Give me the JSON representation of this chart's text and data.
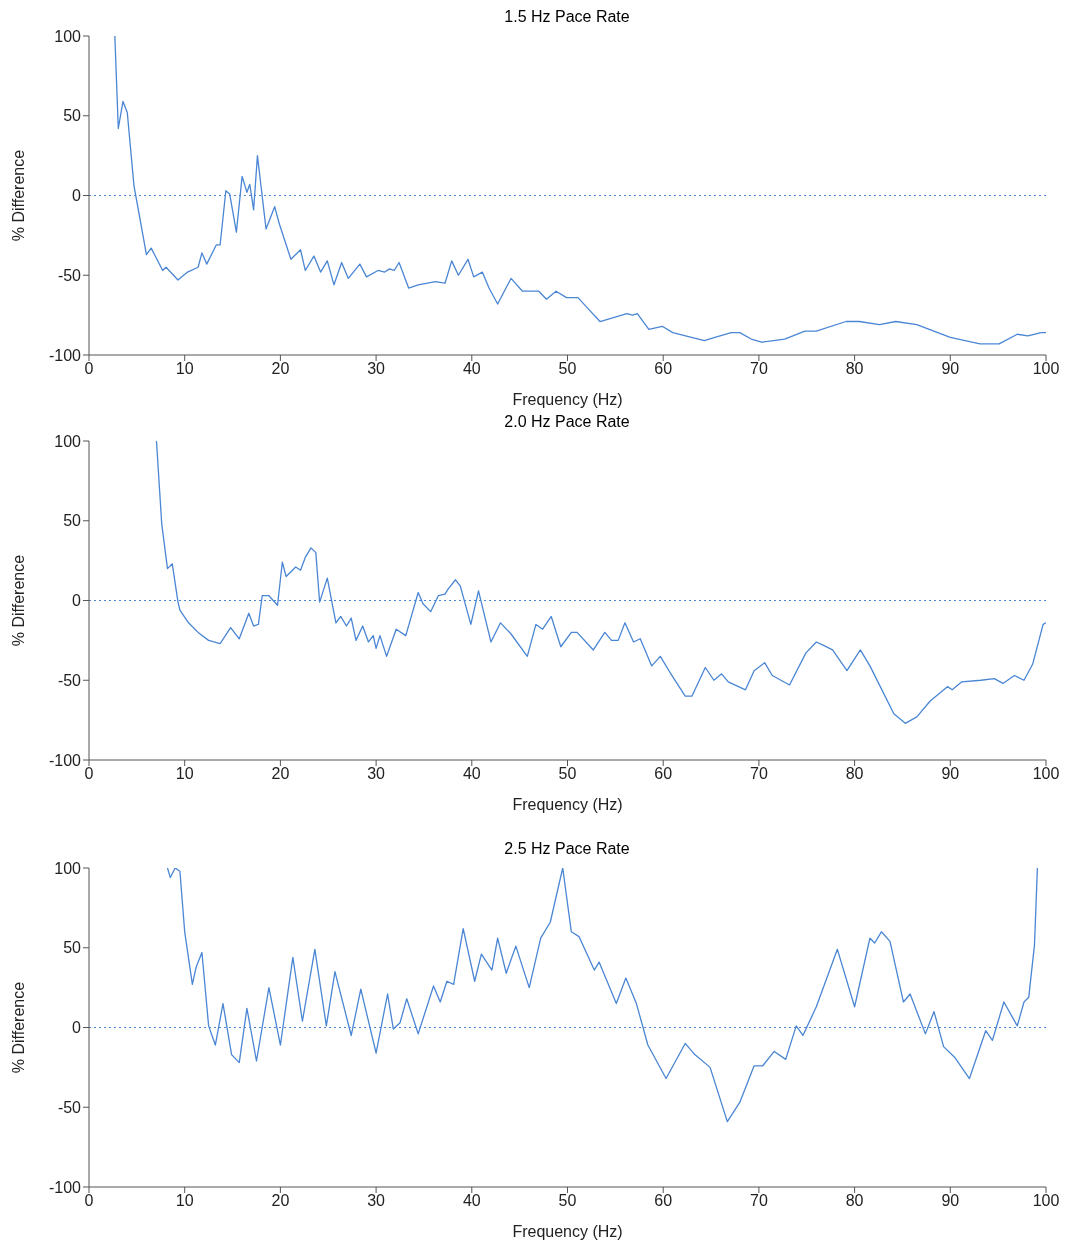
{
  "chart_data": [
    {
      "type": "line",
      "title": "1.5 Hz Pace Rate",
      "xlabel": "Frequency (Hz)",
      "ylabel": "% Difference",
      "xlim": [
        0,
        100
      ],
      "xticks": [
        0,
        10,
        20,
        30,
        40,
        50,
        60,
        70,
        80,
        90,
        100
      ],
      "ylim": [
        -100,
        100
      ],
      "yticks": [
        -100,
        -50,
        0,
        50,
        100
      ],
      "grid": false,
      "marker": "none",
      "line_style": "solid",
      "ref_lines": [
        {
          "axis": "y",
          "value": 0,
          "color": "#4a86d4",
          "line_style": "dotted"
        }
      ],
      "series": [
        {
          "color": "#4a86d4",
          "x": [
            2.7,
            3.06,
            3.55,
            4.0,
            4.7,
            5.4,
            6.0,
            6.5,
            7.7,
            8.05,
            9.3,
            10.3,
            11.4,
            11.8,
            12.3,
            13.3,
            13.7,
            14.3,
            14.7,
            15.4,
            16.0,
            16.5,
            16.8,
            17.2,
            17.6,
            18.5,
            19.4,
            19.9,
            21.1,
            22.1,
            22.6,
            23.5,
            24.2,
            24.9,
            25.6,
            26.4,
            27.1,
            28.3,
            29.0,
            30.2,
            30.9,
            31.4,
            31.9,
            32.4,
            33.4,
            34.4,
            36.2,
            37.2,
            37.9,
            38.6,
            39.6,
            40.2,
            41.1,
            41.8,
            42.7,
            44.1,
            45.3,
            47.0,
            47.8,
            48.8,
            49.9,
            51.1,
            52.0,
            53.4,
            56.2,
            56.8,
            57.3,
            58.5,
            59.9,
            61.0,
            64.3,
            65.4,
            67.1,
            68.0,
            69.2,
            70.3,
            72.7,
            74.8,
            76.0,
            79.1,
            80.5,
            82.6,
            84.3,
            86.5,
            90.0,
            93.1,
            95.1,
            97.0,
            98.1,
            99.5,
            100
          ],
          "values": [
            100,
            42,
            59,
            52,
            6,
            -17,
            -37,
            -33,
            -47,
            -45,
            -53,
            -48,
            -45,
            -36,
            -43,
            -31,
            -31,
            3,
            1,
            -23,
            12,
            2,
            7,
            -9,
            25,
            -21,
            -7,
            -18,
            -40,
            -34,
            -47,
            -38,
            -48,
            -41,
            -56,
            -42,
            -52,
            -43,
            -51,
            -47,
            -48,
            -46,
            -47,
            -42,
            -58,
            -56,
            -54,
            -55,
            -41,
            -50,
            -40,
            -51,
            -48,
            -58,
            -68,
            -52,
            -60,
            -60,
            -65,
            -60,
            -64,
            -64,
            -70,
            -79,
            -74,
            -75,
            -74,
            -84,
            -82,
            -86,
            -91,
            -89,
            -86,
            -86,
            -90,
            -92,
            -90,
            -85,
            -85,
            -79,
            -79,
            -81,
            -79,
            -81,
            -89,
            -93,
            -93,
            -87,
            -88,
            -86,
            -86
          ]
        }
      ]
    },
    {
      "type": "line",
      "title": "2.0 Hz Pace Rate",
      "xlabel": "Frequency (Hz)",
      "ylabel": "% Difference",
      "xlim": [
        0,
        100
      ],
      "xticks": [
        0,
        10,
        20,
        30,
        40,
        50,
        60,
        70,
        80,
        90,
        100
      ],
      "ylim": [
        -100,
        100
      ],
      "yticks": [
        -100,
        -50,
        0,
        50,
        100
      ],
      "grid": false,
      "marker": "none",
      "line_style": "solid",
      "ref_lines": [
        {
          "axis": "y",
          "value": 0,
          "color": "#4a86d4",
          "line_style": "dotted"
        }
      ],
      "series": [
        {
          "color": "#4a86d4",
          "x": [
            7.05,
            7.6,
            8.2,
            8.7,
            9.3,
            9.5,
            10.4,
            11.4,
            12.5,
            13.7,
            14.8,
            15.7,
            16.7,
            17.2,
            17.7,
            18.1,
            18.8,
            19.7,
            20.2,
            20.6,
            21.6,
            22.1,
            22.6,
            23.2,
            23.7,
            24.1,
            24.9,
            25.8,
            26.3,
            26.9,
            27.4,
            27.9,
            28.6,
            29.2,
            29.7,
            30.0,
            30.4,
            31.1,
            32.1,
            33.1,
            34.4,
            34.9,
            35.7,
            36.5,
            37.2,
            37.5,
            38.3,
            38.8,
            39.9,
            40.7,
            42.0,
            43.0,
            44.1,
            45.8,
            46.7,
            47.4,
            48.3,
            49.3,
            50.4,
            51.0,
            52.7,
            53.9,
            54.6,
            55.3,
            56.0,
            56.9,
            57.6,
            58.8,
            59.7,
            60.7,
            62.3,
            63.0,
            64.4,
            65.3,
            66.1,
            66.8,
            68.6,
            69.5,
            70.6,
            71.4,
            73.2,
            74.9,
            76.0,
            76.7,
            77.7,
            79.2,
            80.6,
            81.6,
            84.1,
            85.3,
            86.5,
            87.9,
            89.7,
            90.2,
            91.2,
            93.2,
            94.6,
            95.5,
            96.7,
            97.7,
            98.6,
            99.7,
            100
          ],
          "values": [
            100,
            48,
            20,
            23,
            -1,
            -6,
            -14,
            -20,
            -25,
            -27,
            -17,
            -24,
            -8,
            -16,
            -15,
            3,
            3,
            -3,
            24,
            15,
            21,
            19,
            27,
            33,
            30,
            -1,
            14,
            -14,
            -10,
            -16,
            -11,
            -25,
            -16,
            -26,
            -22,
            -30,
            -22,
            -35,
            -18,
            -22,
            5,
            -2,
            -7,
            3,
            4,
            7,
            13,
            9,
            -15,
            6,
            -26,
            -14,
            -21,
            -35,
            -15,
            -18,
            -10,
            -29,
            -20,
            -20,
            -31,
            -20,
            -25,
            -25,
            -14,
            -26,
            -24,
            -41,
            -35,
            -45,
            -60,
            -60,
            -42,
            -50,
            -46,
            -51,
            -56,
            -44,
            -39,
            -47,
            -53,
            -33,
            -26,
            -28,
            -31,
            -44,
            -31,
            -41,
            -71,
            -77,
            -73,
            -63,
            -54,
            -56,
            -51,
            -50,
            -49,
            -52,
            -47,
            -50,
            -40,
            -15,
            -14
          ]
        }
      ]
    },
    {
      "type": "line",
      "title": "2.5 Hz Pace Rate",
      "xlabel": "Frequency (Hz)",
      "ylabel": "% Difference",
      "xlim": [
        0,
        100
      ],
      "xticks": [
        0,
        10,
        20,
        30,
        40,
        50,
        60,
        70,
        80,
        90,
        100
      ],
      "ylim": [
        -100,
        100
      ],
      "yticks": [
        -100,
        -50,
        0,
        50,
        100
      ],
      "grid": false,
      "marker": "none",
      "line_style": "solid",
      "ref_lines": [
        {
          "axis": "y",
          "value": 0,
          "color": "#4a86d4",
          "line_style": "dotted"
        }
      ],
      "series": [
        {
          "color": "#4a86d4",
          "x": [
            8.2,
            8.5,
            9.0,
            9.5,
            10.0,
            10.8,
            11.2,
            11.8,
            12.5,
            13.2,
            14.0,
            14.9,
            15.7,
            16.5,
            17.5,
            18.8,
            20.0,
            21.3,
            22.3,
            23.6,
            24.8,
            25.7,
            27.4,
            28.4,
            30.0,
            31.2,
            31.8,
            32.5,
            33.2,
            34.4,
            36.0,
            36.7,
            37.4,
            38.1,
            39.1,
            40.3,
            41.0,
            42.1,
            42.7,
            43.6,
            44.6,
            46.0,
            47.2,
            48.2,
            49.5,
            50.4,
            51.2,
            52.8,
            53.3,
            55.1,
            56.1,
            57.2,
            58.4,
            60.3,
            62.3,
            63.3,
            64.9,
            66.7,
            68.0,
            69.5,
            70.4,
            71.6,
            72.8,
            73.9,
            74.6,
            76.0,
            78.2,
            80.0,
            81.6,
            82.1,
            82.8,
            83.7,
            85.1,
            85.8,
            87.4,
            88.3,
            89.3,
            90.5,
            92.0,
            93.7,
            94.4,
            95.6,
            97.0,
            97.7,
            98.2,
            98.8,
            99.1
          ],
          "values": [
            100,
            94,
            100,
            98,
            60,
            27,
            38,
            47,
            1,
            -11,
            15,
            -17,
            -22,
            12,
            -21,
            25,
            -11,
            44,
            4,
            49,
            1,
            35,
            -5,
            24,
            -16,
            21,
            -1,
            3,
            18,
            -4,
            26,
            16,
            29,
            27,
            62,
            29,
            46,
            36,
            56,
            34,
            51,
            25,
            56,
            66,
            100,
            60,
            57,
            36,
            41,
            15,
            31,
            15,
            -11,
            -32,
            -10,
            -17,
            -25,
            -59,
            -47,
            -24,
            -24,
            -15,
            -20,
            1,
            -5,
            13,
            49,
            13,
            56,
            53,
            60,
            54,
            16,
            21,
            -4,
            10,
            -12,
            -19,
            -32,
            -2,
            -8,
            16,
            1,
            16,
            19,
            52,
            100
          ]
        }
      ]
    }
  ]
}
